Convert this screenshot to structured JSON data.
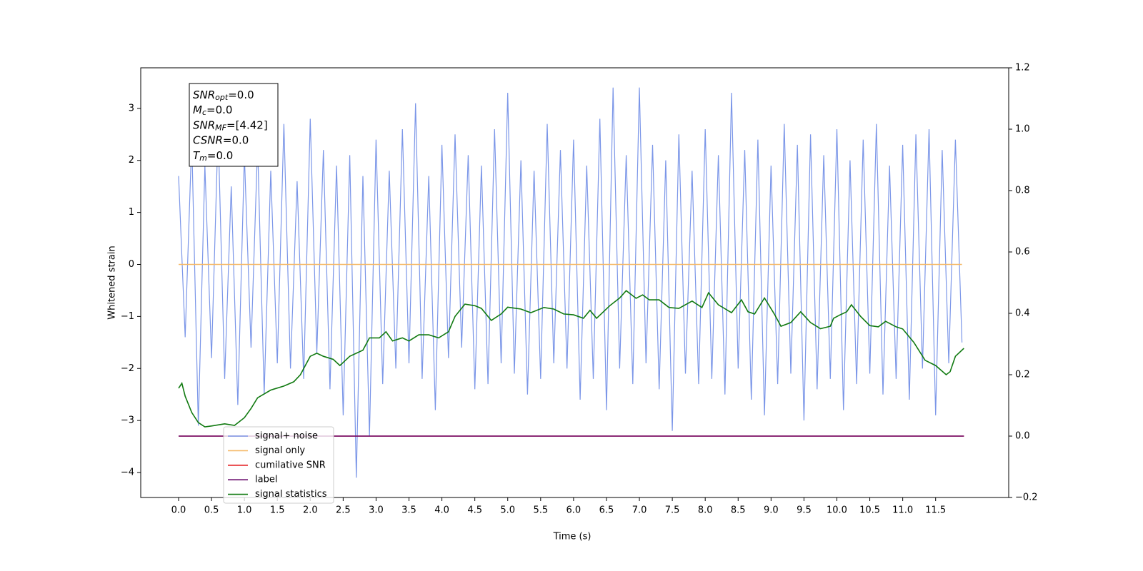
{
  "chart_data": {
    "type": "line",
    "xlabel": "Time (s)",
    "ylabel": "Whitened strain",
    "xlim": [
      -0.575,
      12.61
    ],
    "ylim": [
      -4.48,
      3.78
    ],
    "y2lim": [
      -0.2,
      1.2
    ],
    "xticks": [
      {
        "value": 0,
        "label": "0.0"
      },
      0.5,
      {
        "value": 1,
        "label": "1.0"
      },
      1.5,
      {
        "value": 2,
        "label": "2.0"
      },
      2.5,
      {
        "value": 3,
        "label": "3.0"
      },
      3.5,
      {
        "value": 4,
        "label": "4.0"
      },
      4.5,
      {
        "value": 5,
        "label": "5.0"
      },
      5.5,
      {
        "value": 6,
        "label": "6.0"
      },
      6.5,
      {
        "value": 7,
        "label": "7.0"
      },
      7.5,
      {
        "value": 8,
        "label": "8.0"
      },
      8.5,
      {
        "value": 9,
        "label": "9.0"
      },
      9.5,
      {
        "value": 10,
        "label": "10.0"
      },
      10.5,
      {
        "value": 11,
        "label": "11.0"
      },
      11.5
    ],
    "yticks": [
      {
        "value": -4,
        "label": "−4"
      },
      {
        "value": -3,
        "label": "−3"
      },
      {
        "value": -2,
        "label": "−2"
      },
      {
        "value": -1,
        "label": "−1"
      },
      0,
      1,
      2,
      3
    ],
    "y2ticks": [
      {
        "value": -0.2,
        "label": "−0.2"
      },
      {
        "value": 0,
        "label": "0.0"
      },
      0.2,
      0.4,
      0.6,
      0.8,
      {
        "value": 1,
        "label": "1.0"
      },
      1.2
    ],
    "legend": "lower left",
    "annotation": [
      {
        "main": "SNR",
        "sub": "opt",
        "rest": "=0.0"
      },
      {
        "main": "M",
        "sub": "c",
        "rest": "=0.0"
      },
      {
        "main": "SNR",
        "sub": "MF",
        "rest": "=[4.42]"
      },
      {
        "main": "CSNR",
        "rest": "=0.0"
      },
      {
        "main": "T",
        "sub": "m",
        "rest": "=0.0"
      }
    ],
    "series": [
      {
        "name": "signal+ noise",
        "color": "#7b96e8",
        "x": [
          0.0,
          0.1,
          0.2,
          0.3,
          0.4,
          0.5,
          0.6,
          0.7,
          0.8,
          0.9,
          1.0,
          1.1,
          1.2,
          1.3,
          1.4,
          1.5,
          1.6,
          1.7,
          1.8,
          1.9,
          2.0,
          2.1,
          2.2,
          2.3,
          2.4,
          2.5,
          2.6,
          2.7,
          2.8,
          2.9,
          3.0,
          3.1,
          3.2,
          3.3,
          3.4,
          3.5,
          3.6,
          3.7,
          3.8,
          3.9,
          4.0,
          4.1,
          4.2,
          4.3,
          4.4,
          4.5,
          4.6,
          4.7,
          4.8,
          4.9,
          5.0,
          5.1,
          5.2,
          5.3,
          5.4,
          5.5,
          5.6,
          5.7,
          5.8,
          5.9,
          6.0,
          6.1,
          6.2,
          6.3,
          6.4,
          6.5,
          6.6,
          6.7,
          6.8,
          6.9,
          7.0,
          7.1,
          7.2,
          7.3,
          7.4,
          7.5,
          7.6,
          7.7,
          7.8,
          7.9,
          8.0,
          8.1,
          8.2,
          8.3,
          8.4,
          8.5,
          8.6,
          8.7,
          8.8,
          8.9,
          9.0,
          9.1,
          9.2,
          9.3,
          9.4,
          9.5,
          9.6,
          9.7,
          9.8,
          9.9,
          10.0,
          10.1,
          10.2,
          10.3,
          10.4,
          10.5,
          10.6,
          10.7,
          10.8,
          10.9,
          11.0,
          11.1,
          11.2,
          11.3,
          11.4,
          11.5,
          11.6,
          11.7,
          11.8,
          11.9
        ],
        "values": [
          1.7,
          -1.4,
          2.4,
          -3.1,
          1.9,
          -1.8,
          2.6,
          -2.2,
          1.5,
          -2.7,
          2.1,
          -1.6,
          2.3,
          -2.5,
          1.8,
          -1.9,
          2.7,
          -2.0,
          1.6,
          -2.2,
          2.8,
          -1.7,
          2.2,
          -2.4,
          1.9,
          -2.9,
          2.1,
          -4.1,
          1.7,
          -3.3,
          2.4,
          -2.3,
          1.8,
          -2.0,
          2.6,
          -1.9,
          3.1,
          -2.2,
          1.7,
          -2.8,
          2.3,
          -1.8,
          2.5,
          -1.6,
          2.1,
          -2.4,
          1.9,
          -2.3,
          2.6,
          -1.9,
          3.3,
          -2.1,
          2.0,
          -2.5,
          1.8,
          -2.2,
          2.7,
          -1.9,
          2.2,
          -2.0,
          2.4,
          -2.6,
          1.9,
          -2.2,
          2.8,
          -2.8,
          3.4,
          -2.0,
          2.1,
          -2.3,
          3.4,
          -1.9,
          2.3,
          -2.4,
          2.0,
          -3.2,
          2.5,
          -2.1,
          1.8,
          -2.3,
          2.6,
          -2.2,
          2.1,
          -2.5,
          3.3,
          -2.0,
          2.2,
          -2.6,
          2.4,
          -2.9,
          1.9,
          -2.3,
          2.7,
          -2.1,
          2.3,
          -3.0,
          2.5,
          -2.4,
          2.1,
          -2.2,
          2.6,
          -2.8,
          2.0,
          -2.3,
          2.4,
          -2.1,
          2.7,
          -2.5,
          1.9,
          -2.2,
          2.3,
          -2.6,
          2.5,
          -2.0,
          2.6,
          -2.9,
          2.2,
          -1.9,
          2.4,
          -1.5
        ]
      },
      {
        "name": "signal only",
        "color": "#f5b968",
        "x": [
          0,
          11.9
        ],
        "values": [
          0,
          0
        ]
      },
      {
        "name": "cumilative SNR",
        "color": "#e41a1c",
        "axis": "y2",
        "x": [
          0,
          11.93
        ],
        "values": [
          0,
          0
        ]
      },
      {
        "name": "label",
        "color": "#6a0d6e",
        "axis": "y2",
        "x": [
          0,
          11.93
        ],
        "values": [
          0,
          0
        ]
      },
      {
        "name": "signal statistics",
        "color": "#117a11",
        "axis": "y2",
        "x": [
          0.0,
          0.05,
          0.1,
          0.2,
          0.3,
          0.4,
          0.5,
          0.7,
          0.85,
          1.0,
          1.1,
          1.2,
          1.4,
          1.6,
          1.75,
          1.85,
          2.0,
          2.1,
          2.2,
          2.35,
          2.45,
          2.6,
          2.8,
          2.9,
          3.05,
          3.15,
          3.25,
          3.4,
          3.5,
          3.65,
          3.8,
          3.95,
          4.1,
          4.2,
          4.35,
          4.5,
          4.6,
          4.75,
          4.9,
          5.0,
          5.2,
          5.35,
          5.55,
          5.7,
          5.85,
          6.0,
          6.15,
          6.25,
          6.35,
          6.55,
          6.7,
          6.8,
          6.95,
          7.05,
          7.15,
          7.3,
          7.45,
          7.6,
          7.8,
          7.95,
          8.05,
          8.2,
          8.4,
          8.55,
          8.65,
          8.75,
          8.9,
          9.05,
          9.15,
          9.3,
          9.45,
          9.6,
          9.75,
          9.9,
          9.95,
          10.05,
          10.15,
          10.22,
          10.36,
          10.5,
          10.63,
          10.74,
          10.9,
          11.0,
          11.17,
          11.34,
          11.5,
          11.66,
          11.72,
          11.8,
          11.93
        ],
        "values": [
          0.156,
          0.172,
          0.13,
          0.077,
          0.044,
          0.03,
          0.033,
          0.04,
          0.035,
          0.06,
          0.09,
          0.125,
          0.15,
          0.163,
          0.177,
          0.2,
          0.26,
          0.27,
          0.26,
          0.25,
          0.23,
          0.26,
          0.28,
          0.32,
          0.32,
          0.34,
          0.31,
          0.32,
          0.31,
          0.33,
          0.33,
          0.32,
          0.34,
          0.39,
          0.43,
          0.425,
          0.416,
          0.377,
          0.398,
          0.42,
          0.414,
          0.402,
          0.419,
          0.414,
          0.398,
          0.395,
          0.384,
          0.41,
          0.384,
          0.425,
          0.45,
          0.474,
          0.449,
          0.46,
          0.444,
          0.444,
          0.419,
          0.416,
          0.44,
          0.419,
          0.467,
          0.428,
          0.402,
          0.444,
          0.405,
          0.398,
          0.45,
          0.398,
          0.358,
          0.37,
          0.405,
          0.37,
          0.35,
          0.358,
          0.384,
          0.395,
          0.405,
          0.428,
          0.39,
          0.36,
          0.356,
          0.374,
          0.356,
          0.349,
          0.305,
          0.247,
          0.23,
          0.2,
          0.21,
          0.26,
          0.286
        ]
      }
    ]
  }
}
